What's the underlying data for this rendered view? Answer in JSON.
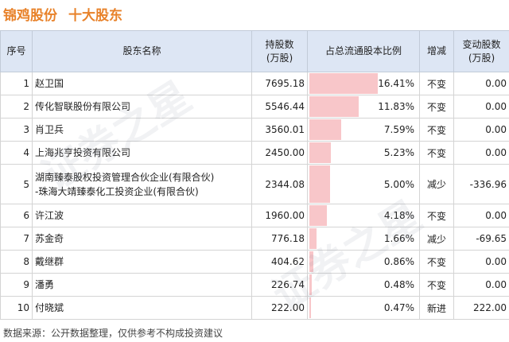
{
  "header": {
    "company": "锦鸡股份",
    "subtitle": "十大股东"
  },
  "table": {
    "columns": {
      "idx": "序号",
      "name": "股东名称",
      "shares": [
        "持股数",
        "(万股)"
      ],
      "pct": "占总流通股本比例",
      "change": "增减",
      "delta": [
        "变动股数",
        "(万股)"
      ]
    },
    "rows": [
      {
        "idx": "1",
        "name": [
          "赵卫国"
        ],
        "shares": "7695.18",
        "pct": "16.41%",
        "pct_value": 16.41,
        "change": "不变",
        "status": "same",
        "delta": "0.00"
      },
      {
        "idx": "2",
        "name": [
          "传化智联股份有限公司"
        ],
        "shares": "5546.44",
        "pct": "11.83%",
        "pct_value": 11.83,
        "change": "不变",
        "status": "same",
        "delta": "0.00"
      },
      {
        "idx": "3",
        "name": [
          "肖卫兵"
        ],
        "shares": "3560.01",
        "pct": "7.59%",
        "pct_value": 7.59,
        "change": "不变",
        "status": "same",
        "delta": "0.00"
      },
      {
        "idx": "4",
        "name": [
          "上海兆亨投资有限公司"
        ],
        "shares": "2450.00",
        "pct": "5.23%",
        "pct_value": 5.23,
        "change": "不变",
        "status": "same",
        "delta": "0.00"
      },
      {
        "idx": "5",
        "name": [
          "湖南臻泰股权投资管理合伙企业(有限合伙)",
          "-珠海大靖臻泰化工投资企业(有限合伙)"
        ],
        "shares": "2344.08",
        "pct": "5.00%",
        "pct_value": 5.0,
        "change": "减少",
        "status": "down",
        "delta": "-336.96"
      },
      {
        "idx": "6",
        "name": [
          "许江波"
        ],
        "shares": "1960.00",
        "pct": "4.18%",
        "pct_value": 4.18,
        "change": "不变",
        "status": "same",
        "delta": "0.00"
      },
      {
        "idx": "7",
        "name": [
          "苏金奇"
        ],
        "shares": "776.18",
        "pct": "1.66%",
        "pct_value": 1.66,
        "change": "减少",
        "status": "down",
        "delta": "-69.65"
      },
      {
        "idx": "8",
        "name": [
          "戴继群"
        ],
        "shares": "404.62",
        "pct": "0.86%",
        "pct_value": 0.86,
        "change": "不变",
        "status": "same",
        "delta": "0.00"
      },
      {
        "idx": "9",
        "name": [
          "潘勇"
        ],
        "shares": "226.74",
        "pct": "0.48%",
        "pct_value": 0.48,
        "change": "不变",
        "status": "same",
        "delta": "0.00"
      },
      {
        "idx": "10",
        "name": [
          "付晓斌"
        ],
        "shares": "222.00",
        "pct": "0.47%",
        "pct_value": 0.47,
        "change": "新进",
        "status": "new",
        "delta": "222.00"
      }
    ]
  },
  "colors": {
    "title": "#e8822a",
    "header_bg": "#dde6f4",
    "bar": "#f8c6c9",
    "decrease": "#2a9c3a",
    "new": "#e0201c"
  },
  "footer": "数据来源：公开数据整理，仅供参考不构成投资建议",
  "watermark": "证券之星"
}
